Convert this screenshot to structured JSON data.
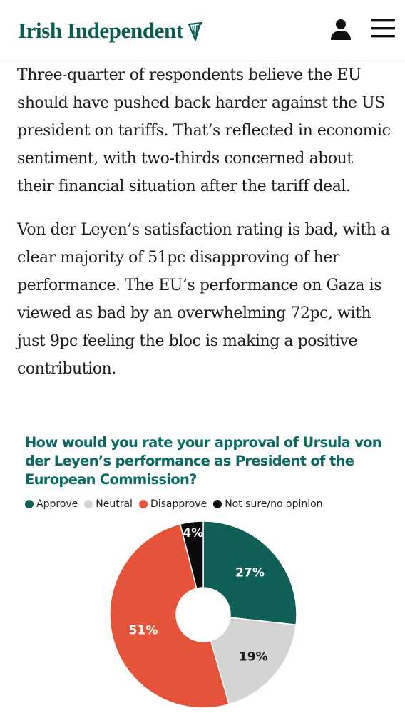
{
  "header": {
    "logo_text": "Irish Independent",
    "icons": {
      "logo": "harp-icon",
      "account": "user-icon",
      "menu": "hamburger-menu-icon"
    },
    "brand_color": "#0b5b52"
  },
  "article": {
    "paragraphs": [
      "Three-quarter of respondents believe the EU should have pushed back harder against the US president on tariffs. That’s reflected in economic sentiment, with two-thirds concerned about their financial situation after the tariff deal.",
      "Von der Leyen’s satisfaction rating is bad, with a clear majority of 51pc disapproving of her performance. The EU’s performance on Gaza is viewed as bad by an overwhelming 72pc, with just 9pc feeling the bloc is making a positive contribution."
    ]
  },
  "chart_data": {
    "type": "pie",
    "donut": true,
    "title": "How would you rate your approval of Ursula von der Leyen’s performance as President of the European Commission?",
    "legend_position": "top-left",
    "categories": [
      "Approve",
      "Neutral",
      "Disapprove",
      "Not sure/no opinion"
    ],
    "values": [
      27,
      19,
      51,
      4
    ],
    "data_labels": [
      "27%",
      "19%",
      "51%",
      "4%"
    ],
    "colors": [
      "#0f5f57",
      "#d4d4d4",
      "#e4533a",
      "#0b0b0b"
    ],
    "label_colors": [
      "#ffffff",
      "#1a1a1a",
      "#ffffff",
      "#ffffff"
    ]
  }
}
